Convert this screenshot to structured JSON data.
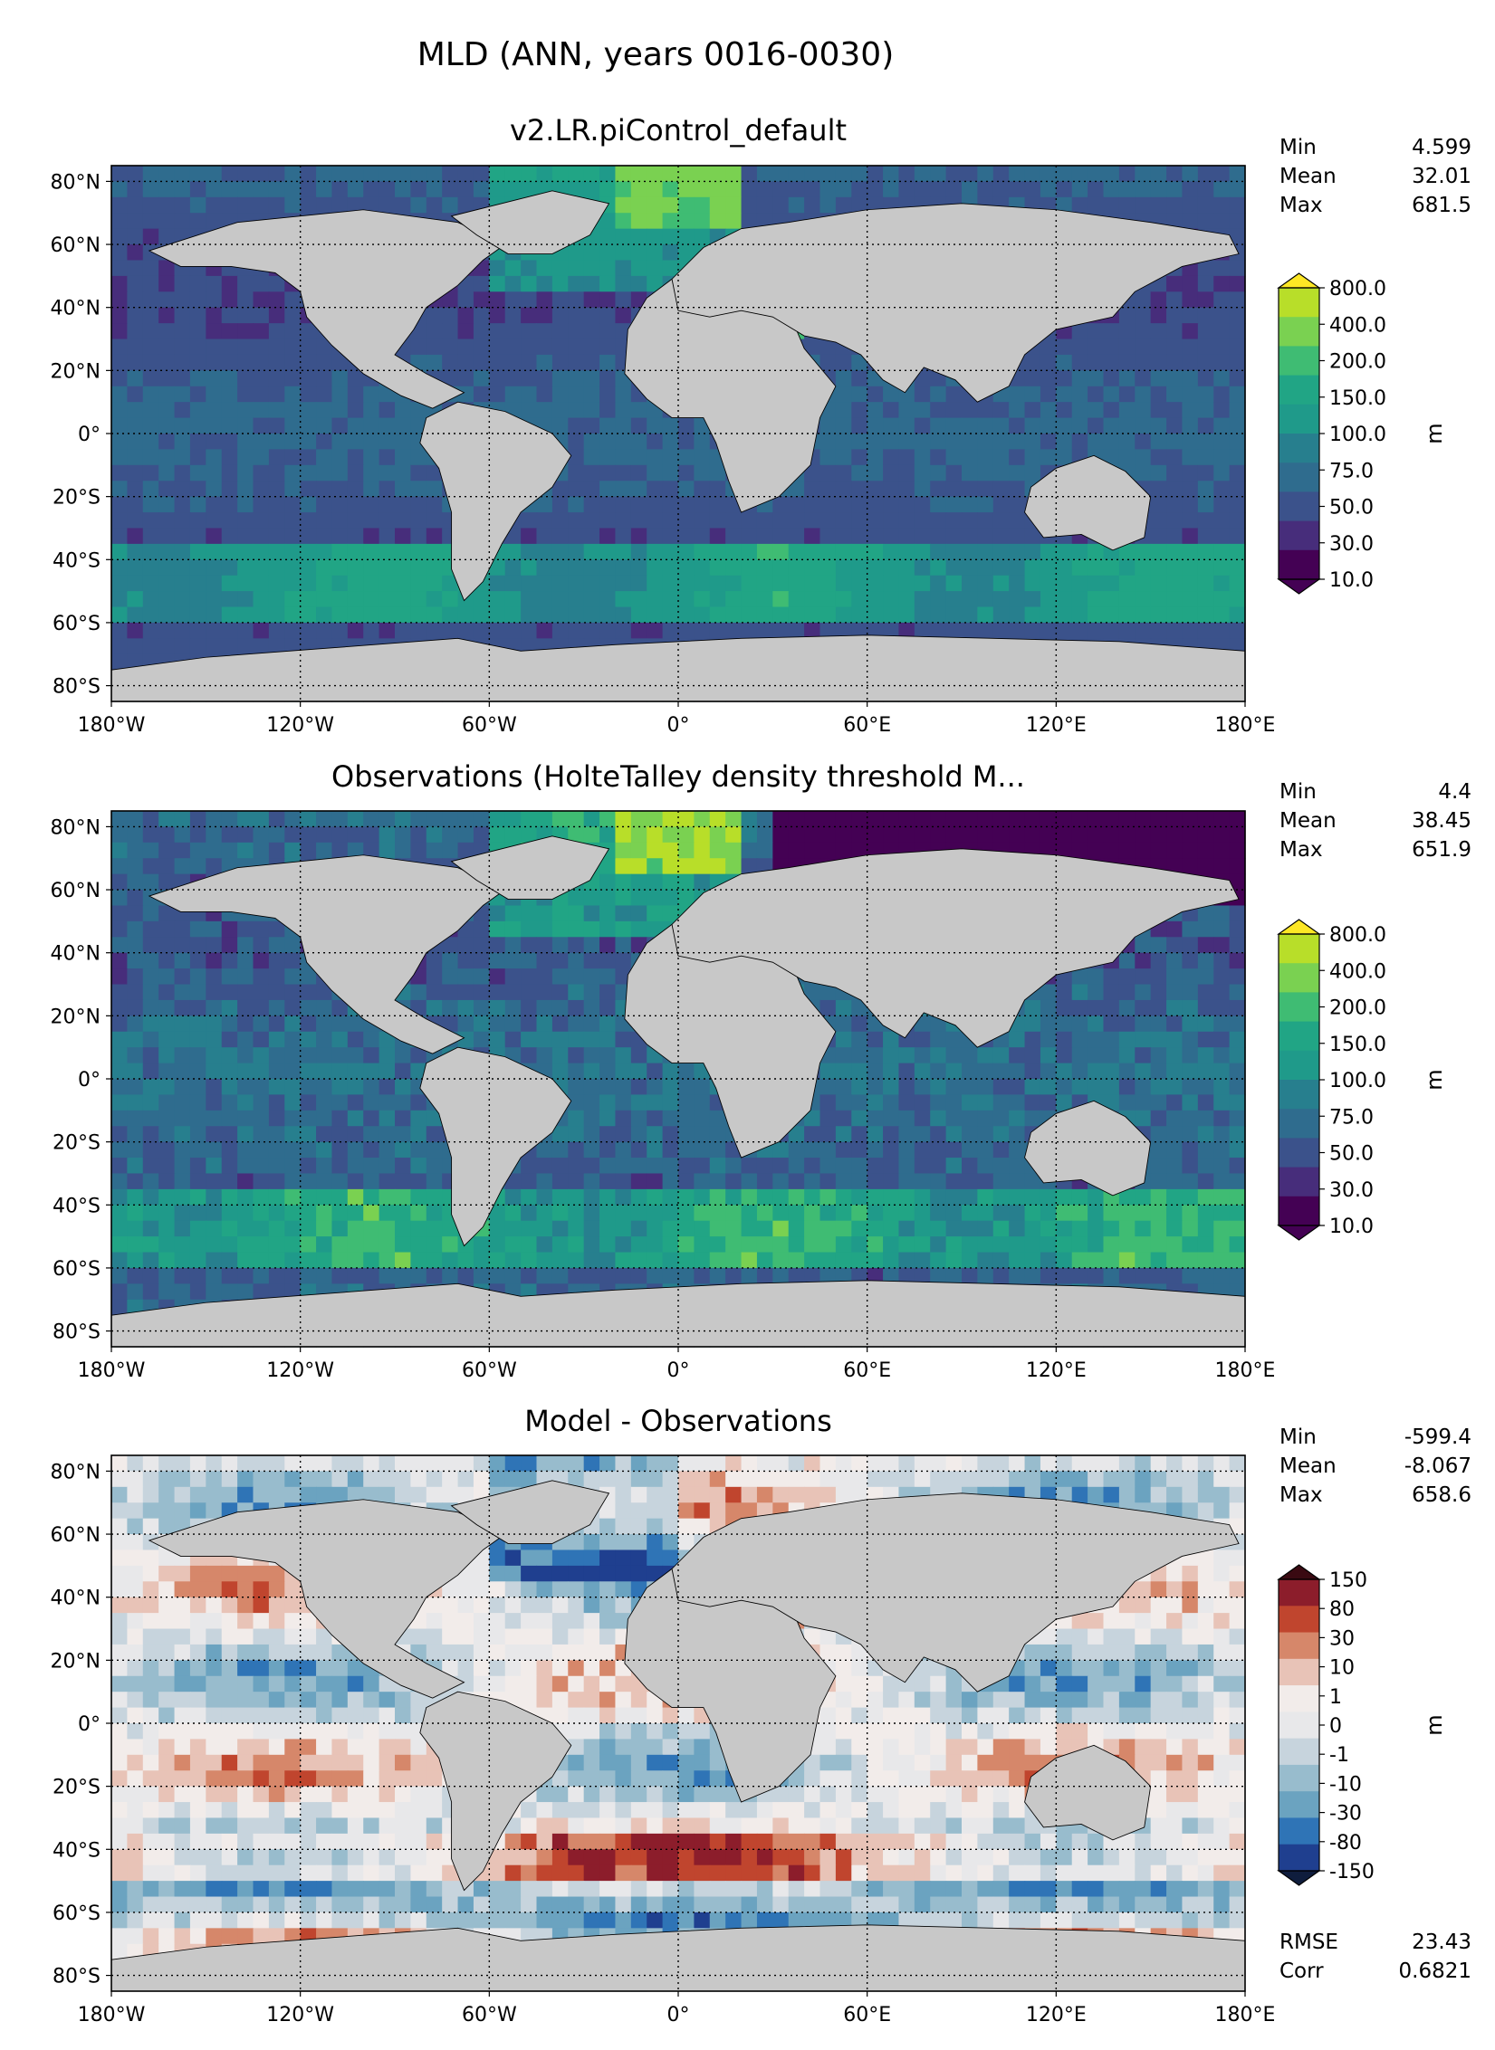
{
  "figure": {
    "title": "MLD (ANN, years 0016-0030)"
  },
  "chart_data": [
    {
      "type": "heatmap",
      "title": "v2.LR.piControl_default",
      "stats": [
        {
          "label": "Min",
          "value": "4.599"
        },
        {
          "label": "Mean",
          "value": "32.01"
        },
        {
          "label": "Max",
          "value": "681.5"
        }
      ],
      "colorbar": {
        "label": "m",
        "ticks": [
          "800.0",
          "400.0",
          "200.0",
          "150.0",
          "100.0",
          "75.0",
          "50.0",
          "30.0",
          "10.0"
        ],
        "colors": [
          "#b8de29",
          "#7ad151",
          "#3fbc73",
          "#21a585",
          "#1f9a8a",
          "#277f8e",
          "#2f6c8e",
          "#3b528b",
          "#472d7b",
          "#440154"
        ],
        "extend_colors": {
          "top": "#fde725",
          "bottom": "#440154"
        }
      },
      "xlim": [
        -180,
        180
      ],
      "ylim": [
        -85,
        85
      ],
      "grid": true
    },
    {
      "type": "heatmap",
      "title": "Observations (HolteTalley density threshold M...",
      "stats": [
        {
          "label": "Min",
          "value": "4.4"
        },
        {
          "label": "Mean",
          "value": "38.45"
        },
        {
          "label": "Max",
          "value": "651.9"
        }
      ],
      "colorbar": {
        "label": "m",
        "ticks": [
          "800.0",
          "400.0",
          "200.0",
          "150.0",
          "100.0",
          "75.0",
          "50.0",
          "30.0",
          "10.0"
        ],
        "colors": [
          "#b8de29",
          "#7ad151",
          "#3fbc73",
          "#21a585",
          "#1f9a8a",
          "#277f8e",
          "#2f6c8e",
          "#3b528b",
          "#472d7b",
          "#440154"
        ],
        "extend_colors": {
          "top": "#fde725",
          "bottom": "#440154"
        }
      },
      "xlim": [
        -180,
        180
      ],
      "ylim": [
        -85,
        85
      ],
      "grid": true
    },
    {
      "type": "heatmap",
      "title": "Model - Observations",
      "stats": [
        {
          "label": "Min",
          "value": "-599.4"
        },
        {
          "label": "Mean",
          "value": "-8.067"
        },
        {
          "label": "Max",
          "value": "658.6"
        }
      ],
      "extra_stats": [
        {
          "label": "RMSE",
          "value": "23.43"
        },
        {
          "label": "Corr",
          "value": "0.6821"
        }
      ],
      "colorbar": {
        "label": "m",
        "ticks": [
          "150",
          "80",
          "30",
          "10",
          "1",
          "0",
          "-1",
          "-10",
          "-30",
          "-80",
          "-150"
        ],
        "colors": [
          "#8c1d2b",
          "#c0452e",
          "#d6876a",
          "#e8c3b7",
          "#f2ecea",
          "#e8e8ea",
          "#c7d4dd",
          "#98bccd",
          "#6ba3c0",
          "#2f74b6",
          "#1f3f8f"
        ],
        "extend_colors": {
          "top": "#3a0a12",
          "bottom": "#0f1d3d"
        }
      },
      "xlim": [
        -180,
        180
      ],
      "ylim": [
        -85,
        85
      ],
      "grid": true
    }
  ],
  "axes": {
    "xticks": [
      "180°W",
      "120°W",
      "60°W",
      "0°",
      "60°E",
      "120°E",
      "180°E"
    ],
    "yticks": [
      "80°N",
      "60°N",
      "40°N",
      "20°N",
      "0°",
      "20°S",
      "40°S",
      "60°S",
      "80°S"
    ]
  },
  "colors": {
    "land": "#c8c8c8",
    "missing": "#ffffff",
    "frame": "#000000"
  }
}
